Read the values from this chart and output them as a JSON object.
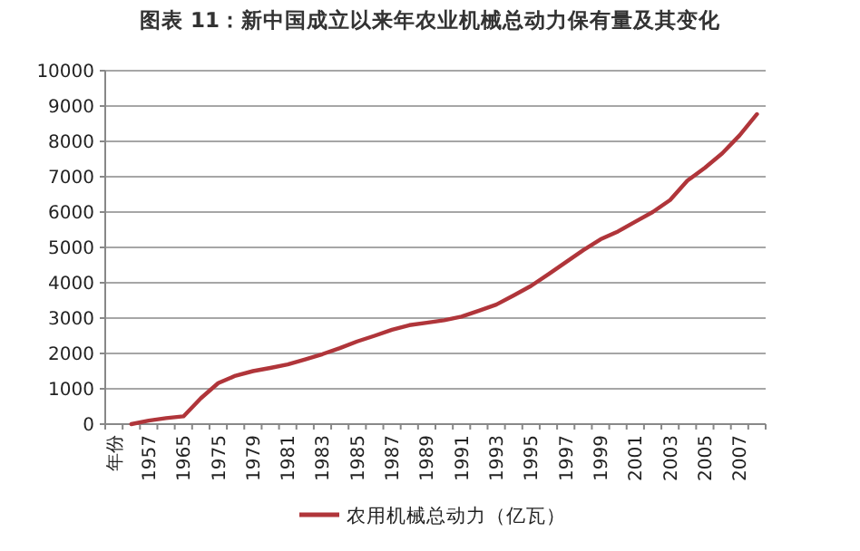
{
  "chart_data": {
    "type": "line",
    "title": "图表 11：新中国成立以来年农业机械总动力保有量及其变化",
    "categories": [
      "年份",
      null,
      "1957",
      null,
      "1965",
      null,
      "1975",
      null,
      "1979",
      null,
      "1981",
      null,
      "1983",
      null,
      "1985",
      null,
      "1987",
      null,
      "1989",
      null,
      "1991",
      null,
      "1993",
      null,
      "1995",
      null,
      "1997",
      null,
      "1999",
      null,
      "2001",
      null,
      "2003",
      null,
      "2005",
      null,
      "2007",
      null
    ],
    "series": [
      {
        "name": "农用机械总动力（亿瓦）",
        "color": "#b0353a",
        "values": [
          null,
          0,
          100,
          170,
          220,
          730,
          1160,
          1370,
          1500,
          1590,
          1690,
          1830,
          1980,
          2150,
          2340,
          2500,
          2670,
          2800,
          2870,
          2940,
          3040,
          3210,
          3380,
          3640,
          3910,
          4240,
          4580,
          4920,
          5230,
          5450,
          5730,
          6000,
          6340,
          6890,
          7250,
          7660,
          8170,
          8770
        ]
      }
    ],
    "ylim": [
      0,
      10000
    ],
    "yticks": [
      0,
      1000,
      2000,
      3000,
      4000,
      5000,
      6000,
      7000,
      8000,
      9000,
      10000
    ],
    "grid": "y",
    "legend": "bottom",
    "marker": "none",
    "line_style": "solid"
  }
}
